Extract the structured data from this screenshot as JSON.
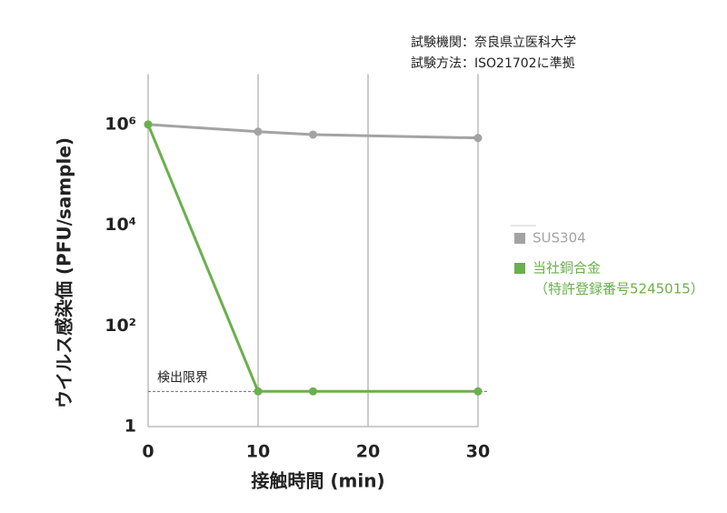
{
  "chart_data": {
    "type": "line",
    "notes": [
      "試験機関：奈良県立医科大学",
      "試験方法：ISO21702に準拠"
    ],
    "xlabel": "接触時間 (min)",
    "ylabel": "ウイルス感染価 (PFU/sample)",
    "x": [
      0,
      10,
      15,
      30
    ],
    "series": [
      {
        "name": "SUS304",
        "color": "#a3a3a3",
        "values": [
          1000000,
          720000,
          630000,
          540000
        ]
      },
      {
        "name": "当社銅合金",
        "color": "#6ab04c",
        "values": [
          1000000,
          5,
          5,
          5
        ]
      }
    ],
    "legend_note": "（特許登録番号5245015）",
    "annotations": [
      {
        "text": "検出限界",
        "value": 5
      }
    ],
    "xlim": [
      0,
      30
    ],
    "xticks": [
      0,
      10,
      20,
      30
    ],
    "ylim": [
      1,
      10000000
    ],
    "log_y": true,
    "yticks": [
      1,
      {
        "value": 100,
        "label": "10²"
      },
      {
        "value": 10000,
        "label": "10⁴"
      },
      {
        "value": 1000000,
        "label": "10⁶"
      }
    ],
    "grid": true,
    "legend": "right"
  }
}
